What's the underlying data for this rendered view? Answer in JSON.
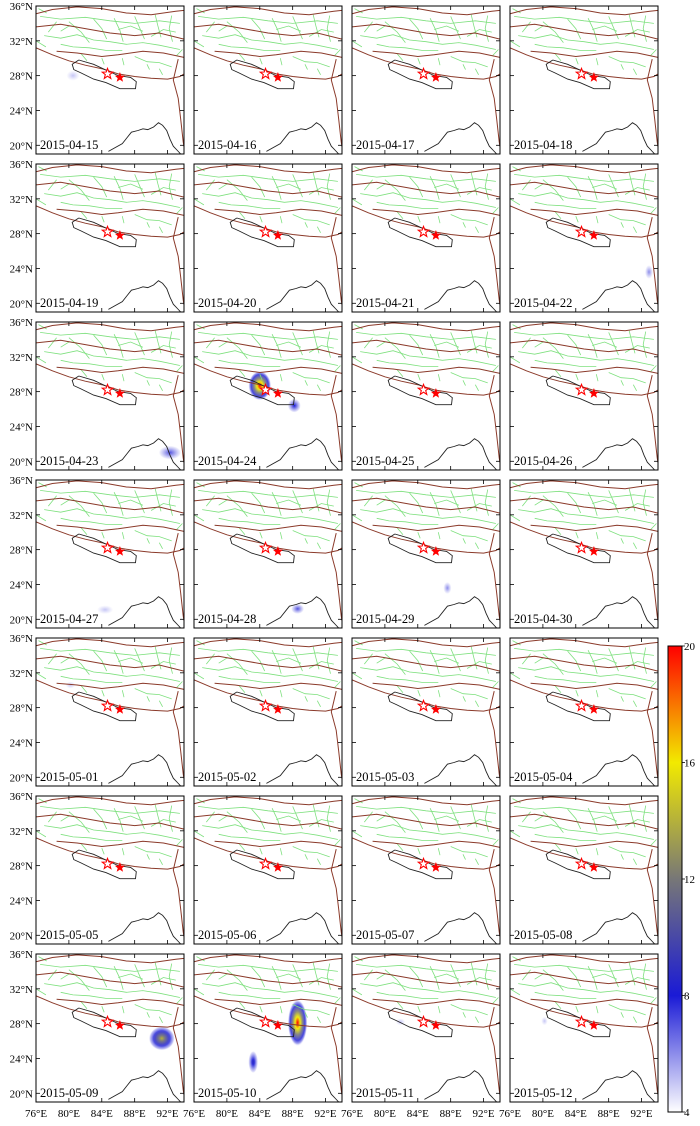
{
  "chart_data": {
    "type": "heatmap",
    "panel_dates": [
      "2015-04-15",
      "2015-04-16",
      "2015-04-17",
      "2015-04-18",
      "2015-04-19",
      "2015-04-20",
      "2015-04-21",
      "2015-04-22",
      "2015-04-23",
      "2015-04-24",
      "2015-04-25",
      "2015-04-26",
      "2015-04-27",
      "2015-04-28",
      "2015-04-29",
      "2015-04-30",
      "2015-05-01",
      "2015-05-02",
      "2015-05-03",
      "2015-05-04",
      "2015-05-05",
      "2015-05-06",
      "2015-05-07",
      "2015-05-08",
      "2015-05-09",
      "2015-05-10",
      "2015-05-11",
      "2015-05-12"
    ],
    "grid": {
      "rows": 7,
      "cols": 4
    },
    "x_range": [
      76,
      94
    ],
    "y_range": [
      19,
      36
    ],
    "x_ticks": [
      76,
      80,
      84,
      88,
      92
    ],
    "x_tick_labels": [
      "76°E",
      "80°E",
      "84°E",
      "88°E",
      "92°E"
    ],
    "y_ticks": [
      20,
      24,
      28,
      32,
      36
    ],
    "y_tick_labels": [
      "20°N",
      "24°N",
      "28°N",
      "32°N",
      "36°N"
    ],
    "colorbar": {
      "min": 4,
      "max": 20,
      "ticks": [
        4,
        8,
        12,
        16,
        20
      ],
      "tick_labels": [
        "4",
        "8",
        "12",
        "16",
        "20"
      ],
      "colors": [
        "#ffffff",
        "#1a1ad6",
        "#777777",
        "#f2ea00",
        "#ff0000"
      ]
    },
    "epicenters": [
      {
        "lon": 84.7,
        "lat": 28.2,
        "label": "mainshock"
      },
      {
        "lon": 86.2,
        "lat": 27.8,
        "label": "aftershock"
      }
    ],
    "anomalies": [
      {
        "panel": 0,
        "lon": 80.5,
        "lat": 28.0,
        "rx": 0.8,
        "ry": 0.6,
        "value": 5
      },
      {
        "panel": 7,
        "lon": 92.9,
        "lat": 23.6,
        "rx": 0.5,
        "ry": 0.8,
        "value": 6
      },
      {
        "panel": 8,
        "lon": 92.3,
        "lat": 21.0,
        "rx": 1.4,
        "ry": 0.8,
        "value": 7
      },
      {
        "panel": 9,
        "lon": 84.0,
        "lat": 28.7,
        "rx": 1.4,
        "ry": 1.7,
        "value": 20
      },
      {
        "panel": 9,
        "lon": 88.2,
        "lat": 26.4,
        "rx": 0.8,
        "ry": 0.8,
        "value": 8
      },
      {
        "panel": 12,
        "lon": 84.4,
        "lat": 21.1,
        "rx": 1.0,
        "ry": 0.5,
        "value": 5
      },
      {
        "panel": 13,
        "lon": 88.6,
        "lat": 21.2,
        "rx": 0.8,
        "ry": 0.6,
        "value": 7
      },
      {
        "panel": 14,
        "lon": 87.6,
        "lat": 23.6,
        "rx": 0.5,
        "ry": 0.7,
        "value": 6
      },
      {
        "panel": 16,
        "lon": 80.2,
        "lat": 30.6,
        "rx": 0.6,
        "ry": 0.4,
        "value": 5
      },
      {
        "panel": 24,
        "lon": 91.3,
        "lat": 26.3,
        "rx": 1.6,
        "ry": 1.4,
        "value": 14
      },
      {
        "panel": 25,
        "lon": 88.6,
        "lat": 28.1,
        "rx": 1.2,
        "ry": 2.7,
        "value": 20
      },
      {
        "panel": 25,
        "lon": 83.2,
        "lat": 23.6,
        "rx": 0.6,
        "ry": 1.3,
        "value": 9
      },
      {
        "panel": 26,
        "lon": 81.9,
        "lat": 28.2,
        "rx": 0.6,
        "ry": 0.4,
        "value": 5
      },
      {
        "panel": 27,
        "lon": 80.2,
        "lat": 28.3,
        "rx": 0.4,
        "ry": 0.5,
        "value": 5
      }
    ]
  }
}
